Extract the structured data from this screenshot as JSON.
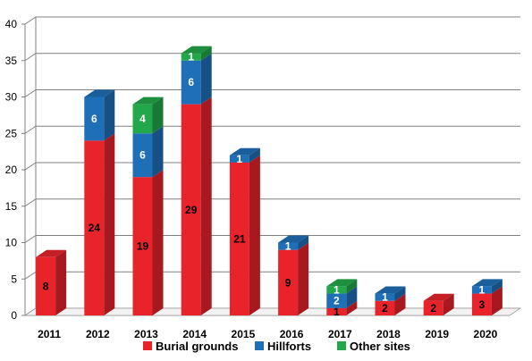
{
  "chart_data": {
    "type": "bar",
    "stacked": true,
    "categories": [
      "2011",
      "2012",
      "2013",
      "2014",
      "2015",
      "2016",
      "2017",
      "2018",
      "2019",
      "2020"
    ],
    "series": [
      {
        "name": "Burial grounds",
        "color": "#e8232a",
        "values": [
          8,
          24,
          19,
          29,
          21,
          9,
          1,
          2,
          2,
          3
        ]
      },
      {
        "name": "Hillforts",
        "color": "#1f6fb8",
        "values": [
          0,
          6,
          6,
          6,
          1,
          1,
          2,
          1,
          0,
          1
        ]
      },
      {
        "name": "Other sites",
        "color": "#22a84a",
        "values": [
          0,
          0,
          4,
          1,
          0,
          0,
          1,
          0,
          0,
          0
        ]
      }
    ],
    "ylim": [
      0,
      40
    ],
    "yticks": [
      "0",
      "5",
      "10",
      "15",
      "20",
      "25",
      "30",
      "35",
      "40"
    ],
    "grid": true,
    "legend_position": "bottom",
    "style": "3d-bars"
  }
}
